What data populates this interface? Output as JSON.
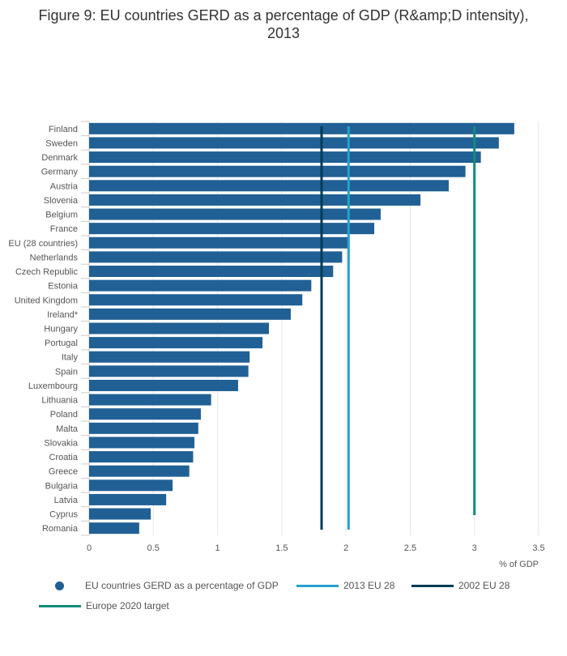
{
  "title_lines": [
    "Figure 9: EU countries GERD as a percentage of GDP (R&amp;D intensity),",
    "2013"
  ],
  "colors": {
    "bar": "#206095",
    "eu2013": "#27a0cc",
    "eu2002": "#003c57",
    "target": "#118c7b",
    "grid": "#e6e6e6",
    "axis": "#cccccc"
  },
  "chart_data": {
    "type": "bar",
    "orientation": "horizontal",
    "title": "Figure 9: EU countries GERD as a percentage of GDP (R&amp;D intensity), 2013",
    "xlabel": "% of GDP",
    "ylabel": "",
    "xlim": [
      0,
      3.5
    ],
    "xticks": [
      "0",
      "0.5",
      "1",
      "1.5",
      "2",
      "2.5",
      "3",
      "3.5"
    ],
    "grid": true,
    "legend_position": "bottom",
    "categories": [
      "Finland",
      "Sweden",
      "Denmark",
      "Germany",
      "Austria",
      "Slovenia",
      "Belgium",
      "France",
      "EU (28 countries)",
      "Netherlands",
      "Czech Republic",
      "Estonia",
      "United Kingdom",
      "Ireland*",
      "Hungary",
      "Portugal",
      "Italy",
      "Spain",
      "Luxembourg",
      "Lithuania",
      "Poland",
      "Malta",
      "Slovakia",
      "Croatia",
      "Greece",
      "Bulgaria",
      "Latvia",
      "Cyprus",
      "Romania"
    ],
    "series": [
      {
        "name": "EU countries GERD as a percentage of GDP",
        "values": [
          3.31,
          3.19,
          3.05,
          2.93,
          2.8,
          2.58,
          2.27,
          2.22,
          2.02,
          1.97,
          1.9,
          1.73,
          1.66,
          1.57,
          1.4,
          1.35,
          1.25,
          1.24,
          1.16,
          0.95,
          0.87,
          0.85,
          0.82,
          0.81,
          0.78,
          0.65,
          0.6,
          0.48,
          0.39
        ]
      }
    ],
    "reference_lines": [
      {
        "name": "2013 EU 28",
        "value": 2.02
      },
      {
        "name": "2002 EU 28",
        "value": 1.81
      },
      {
        "name": "Europe 2020 target",
        "value": 3.0
      }
    ]
  }
}
